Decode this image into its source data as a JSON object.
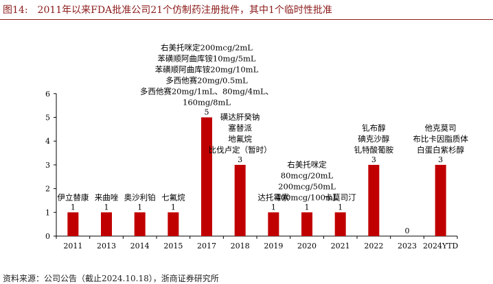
{
  "figure": {
    "number": "图14:",
    "title": "2011年以来FDA批准公司21个仿制药注册批件，其中1个临时性批准",
    "source": "资料来源：公司公告（截止2024.10.18），浙商证券研究所"
  },
  "colors": {
    "bar": "#C00000",
    "title": "#8B1A1A",
    "axis": "#000000"
  },
  "chart_data": {
    "type": "bar",
    "categories": [
      "2011",
      "2013",
      "2014",
      "2015",
      "2017",
      "2018",
      "2019",
      "2020",
      "2021",
      "2022",
      "2023",
      "2024YTD"
    ],
    "values": [
      1,
      1,
      1,
      1,
      5,
      3,
      1,
      1,
      1,
      3,
      0,
      3
    ],
    "ylim": [
      0,
      6
    ],
    "yticks": [
      0,
      1,
      2,
      3,
      4,
      5,
      6
    ],
    "xlabel": "",
    "ylabel": "",
    "grid": false,
    "annotations": [
      [
        "伊立替康"
      ],
      [
        "来曲唑"
      ],
      [
        "奥沙利铂"
      ],
      [
        "七氟烷"
      ],
      [
        "右美托咪定200mcg/2mL",
        "苯磺顺阿曲库铵10mg/5mL",
        "苯磺顺阿曲库铵20mg/10mL",
        "多西他赛20mg/0.5mL",
        "多西他赛20mg/1mL、80mg/4mL、",
        "160mg/8mL"
      ],
      [
        "磺达肝癸钠",
        "塞替派",
        "地氟烷",
        "比伐卢定（暂时）"
      ],
      [
        "达托霉素"
      ],
      [
        "右美托咪定",
        "80mcg/20mL",
        "200mcg/50mL",
        "400mcg/100mL"
      ],
      [
        "卡莫司汀"
      ],
      [
        "钆布醇",
        "碘克沙醇",
        "钆特酸葡胺"
      ],
      [],
      [
        "他克莫司",
        "布比卡因脂质体",
        "白蛋白紫杉醇"
      ]
    ]
  }
}
